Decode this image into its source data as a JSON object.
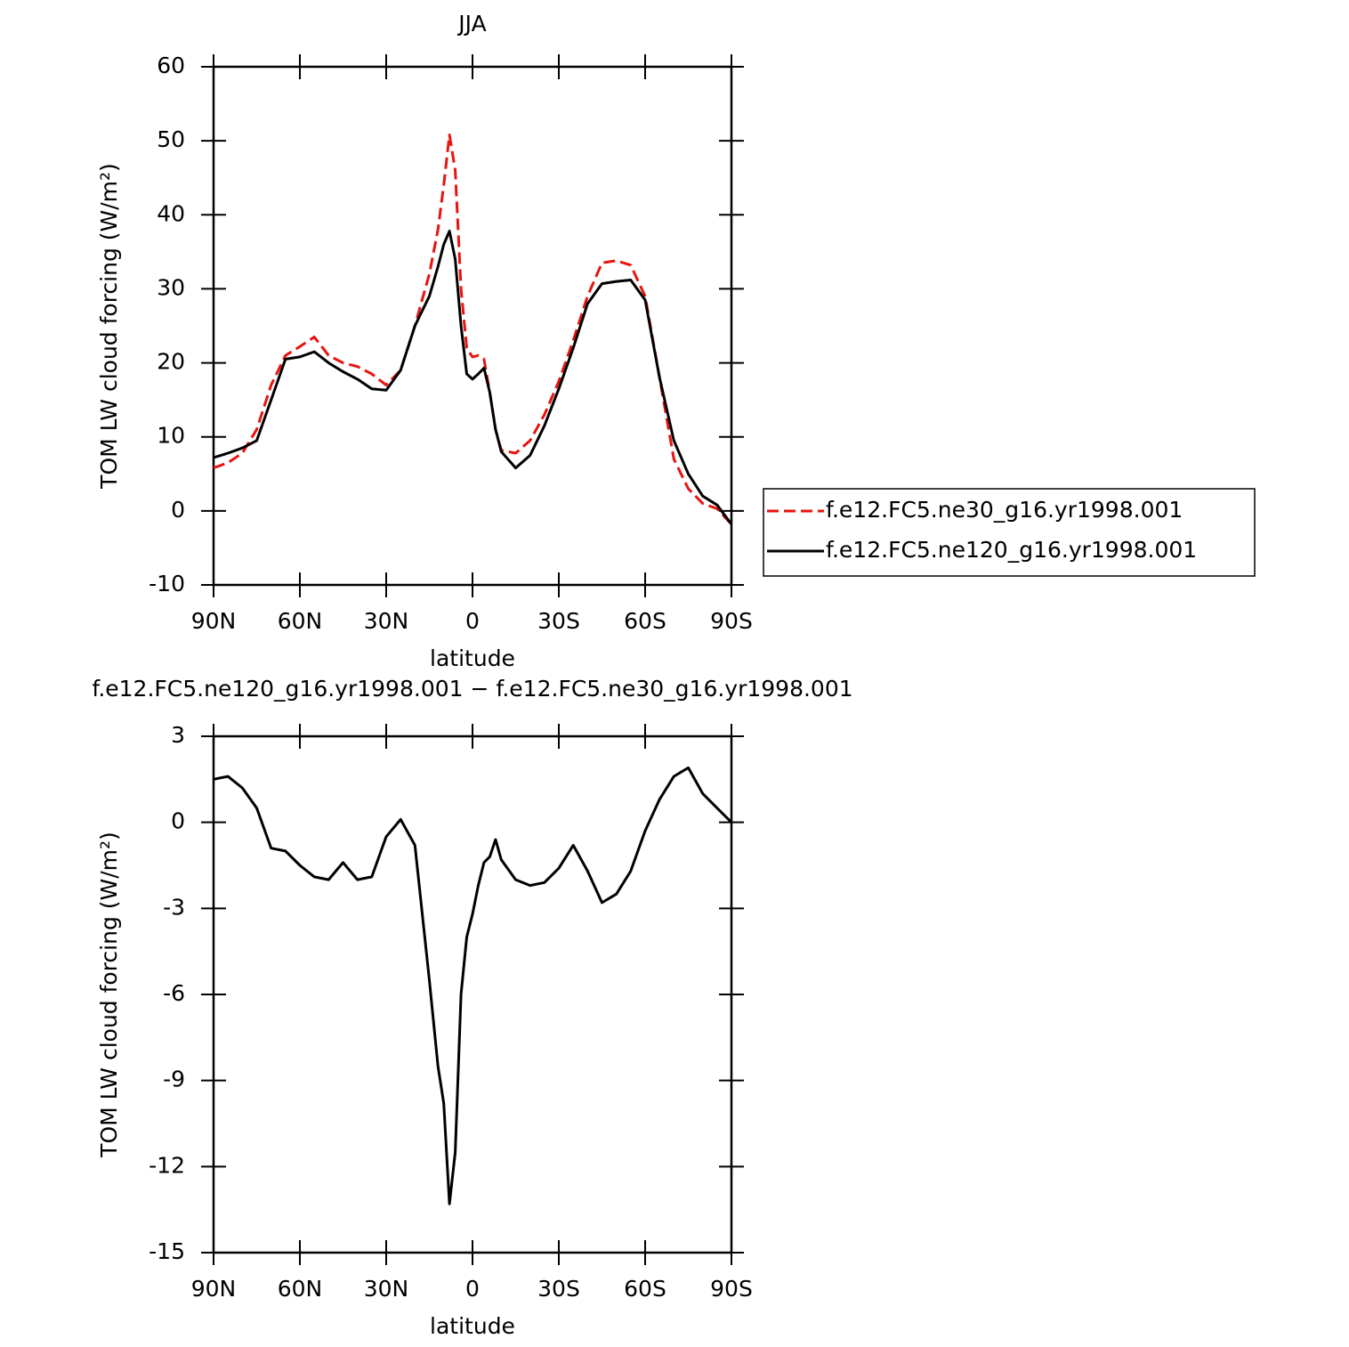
{
  "chart_data": [
    {
      "type": "line",
      "title": "JJA",
      "xlabel": "latitude",
      "ylabel": "TOM LW cloud forcing (W/m²)",
      "x": [
        90,
        85,
        80,
        75,
        70,
        65,
        60,
        55,
        50,
        45,
        40,
        35,
        30,
        25,
        20,
        15,
        12,
        10,
        8,
        6,
        4,
        2,
        0,
        -2,
        -4,
        -6,
        -8,
        -10,
        -15,
        -20,
        -25,
        -30,
        -35,
        -40,
        -45,
        -50,
        -55,
        -60,
        -65,
        -70,
        -75,
        -80,
        -85,
        -90
      ],
      "series": [
        {
          "name": "f.e12.FC5.ne30_g16.yr1998.001",
          "color": "#e8140f",
          "linestyle": "dashed",
          "values": [
            5.8,
            6.5,
            7.8,
            11,
            17,
            21,
            22.2,
            23.5,
            21,
            20,
            19.5,
            18.5,
            17,
            19,
            25,
            32,
            38,
            44,
            50.8,
            46,
            30,
            22,
            20.8,
            21,
            20.5,
            16,
            11,
            8.2,
            7.8,
            9.5,
            13,
            17.5,
            23,
            29,
            33.5,
            33.8,
            33.2,
            29,
            18,
            7,
            3,
            1,
            0.3,
            -1.8
          ]
        },
        {
          "name": "f.e12.FC5.ne120_g16.yr1998.001",
          "color": "#000000",
          "linestyle": "solid",
          "values": [
            7.2,
            7.8,
            8.5,
            9.5,
            15,
            20.5,
            20.8,
            21.5,
            20,
            18.8,
            17.8,
            16.5,
            16.3,
            19,
            25,
            29,
            33,
            36,
            37.8,
            34,
            25,
            18.5,
            17.8,
            18.5,
            19.3,
            16,
            11,
            8,
            5.8,
            7.5,
            11.5,
            16.5,
            22,
            28,
            30.7,
            31,
            31.2,
            28.5,
            18,
            9.5,
            5,
            2,
            0.8,
            -1.8
          ]
        }
      ],
      "xlim": [
        90,
        -90
      ],
      "xticks": [
        {
          "value": 90,
          "label": "90N"
        },
        {
          "value": 60,
          "label": "60N"
        },
        {
          "value": 30,
          "label": "30N"
        },
        0,
        {
          "value": -30,
          "label": "30S"
        },
        {
          "value": -60,
          "label": "60S"
        },
        {
          "value": -90,
          "label": "90S"
        }
      ],
      "ylim": [
        -10,
        60
      ],
      "yticks": [
        -10,
        0,
        10,
        20,
        30,
        40,
        50,
        60
      ],
      "legend": "right"
    },
    {
      "type": "line",
      "title": "f.e12.FC5.ne120_g16.yr1998.001 − f.e12.FC5.ne30_g16.yr1998.001",
      "xlabel": "latitude",
      "ylabel": "TOM LW cloud forcing (W/m²)",
      "x": [
        90,
        85,
        80,
        75,
        70,
        65,
        60,
        55,
        50,
        45,
        40,
        35,
        30,
        25,
        20,
        15,
        12,
        10,
        8,
        6,
        4,
        2,
        0,
        -2,
        -4,
        -6,
        -8,
        -10,
        -15,
        -20,
        -25,
        -30,
        -35,
        -40,
        -45,
        -50,
        -55,
        -60,
        -65,
        -70,
        -75,
        -80,
        -85,
        -90
      ],
      "series": [
        {
          "color": "#000000",
          "linestyle": "solid",
          "values": [
            1.5,
            1.6,
            1.2,
            0.5,
            -0.9,
            -1.0,
            -1.5,
            -1.9,
            -2.0,
            -1.4,
            -2.0,
            -1.9,
            -0.5,
            0.1,
            -0.8,
            -5.5,
            -8.5,
            -9.8,
            -13.3,
            -11.5,
            -6,
            -4,
            -3.2,
            -2.2,
            -1.4,
            -1.2,
            -0.6,
            -1.3,
            -2.0,
            -2.2,
            -2.1,
            -1.6,
            -0.8,
            -1.7,
            -2.8,
            -2.5,
            -1.7,
            -0.3,
            0.8,
            1.6,
            1.9,
            1.0,
            0.5,
            0.0
          ]
        }
      ],
      "xlim": [
        90,
        -90
      ],
      "xticks": [
        {
          "value": 90,
          "label": "90N"
        },
        {
          "value": 60,
          "label": "60N"
        },
        {
          "value": 30,
          "label": "30N"
        },
        0,
        {
          "value": -30,
          "label": "30S"
        },
        {
          "value": -60,
          "label": "60S"
        },
        {
          "value": -90,
          "label": "90S"
        }
      ],
      "ylim": [
        -15,
        3
      ],
      "yticks": [
        -15,
        -12,
        -9,
        -6,
        -3,
        0,
        3
      ]
    }
  ]
}
